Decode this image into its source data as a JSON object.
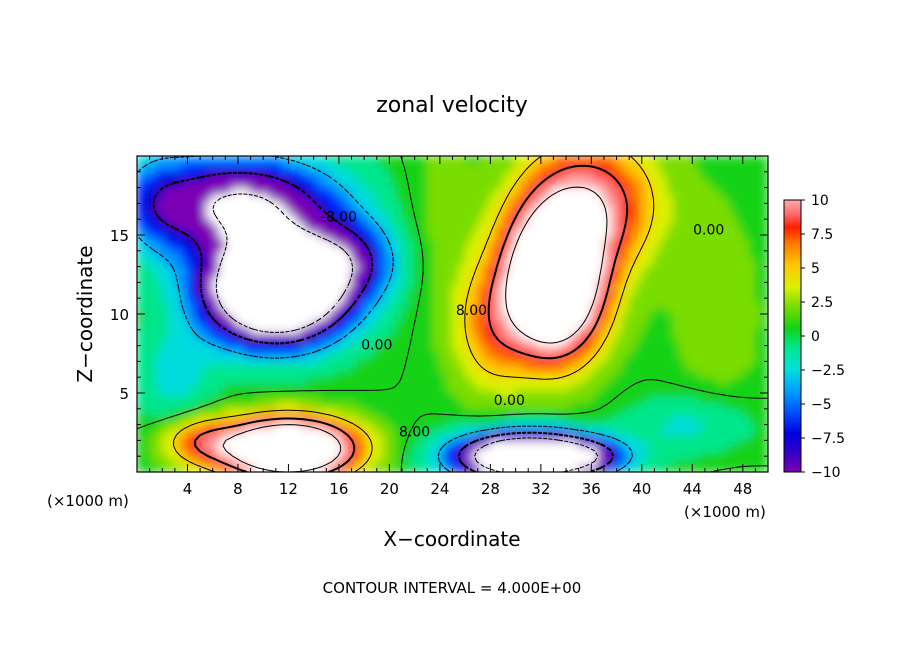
{
  "chart_data": {
    "type": "heatmap",
    "title": "zonal velocity",
    "xlabel": "X−coordinate",
    "ylabel": "Z−coordinate",
    "x_unit_left": "(×1000 m)",
    "x_unit_right": "(×1000 m)",
    "footer": "CONTOUR INTERVAL = 4.000E+00",
    "xlim": [
      0,
      50
    ],
    "ylim": [
      0,
      20
    ],
    "x_ticks": [
      4,
      8,
      12,
      16,
      20,
      24,
      28,
      32,
      36,
      40,
      44,
      48
    ],
    "x_tick_labels": [
      "4",
      "8",
      "12",
      "16",
      "20",
      "24",
      "28",
      "32",
      "36",
      "40",
      "44",
      "48"
    ],
    "y_ticks": [
      5,
      10,
      15
    ],
    "y_tick_labels": [
      "5",
      "10",
      "15"
    ],
    "colorbar": {
      "range": [
        -10,
        10
      ],
      "ticks": [
        10,
        7.5,
        5,
        2.5,
        0,
        -2.5,
        -5,
        -7.5,
        -10
      ],
      "tick_labels": [
        "10",
        "7.5",
        "5",
        "2.5",
        "0",
        "−2.5",
        "−5",
        "−7.5",
        "−10"
      ]
    },
    "contour_labels": [
      {
        "text": "-8.00",
        "x": 16,
        "y": 16.1
      },
      {
        "text": "8.00",
        "x": 22,
        "y": 2.5
      },
      {
        "text": "0.00",
        "x": 19,
        "y": 8.0
      },
      {
        "text": "8.00",
        "x": 26.5,
        "y": 10.2
      },
      {
        "text": "0.00",
        "x": 29.5,
        "y": 4.5
      },
      {
        "text": "0.00",
        "x": 45.3,
        "y": 15.3
      }
    ],
    "features": [
      {
        "name": "negative core upper-left",
        "x": 11,
        "y": 11.5,
        "min_value": -14
      },
      {
        "name": "positive core upper-right",
        "x": 33,
        "y": 12,
        "max_value": 14
      },
      {
        "name": "positive core lower-left",
        "x": 12,
        "y": 1.5,
        "max_value": 15
      },
      {
        "name": "negative core lower-middle",
        "x": 31,
        "y": 1.0,
        "min_value": -13
      }
    ],
    "colors": {
      "scale": [
        "#7c00b4",
        "#0000c8",
        "#0028ff",
        "#0098ff",
        "#00dcdc",
        "#00e68c",
        "#14d214",
        "#7add00",
        "#dcf000",
        "#ffc800",
        "#ff7800",
        "#ff1e00",
        "#ff6e6e",
        "#ffaaaa",
        "#ffffff"
      ]
    }
  }
}
